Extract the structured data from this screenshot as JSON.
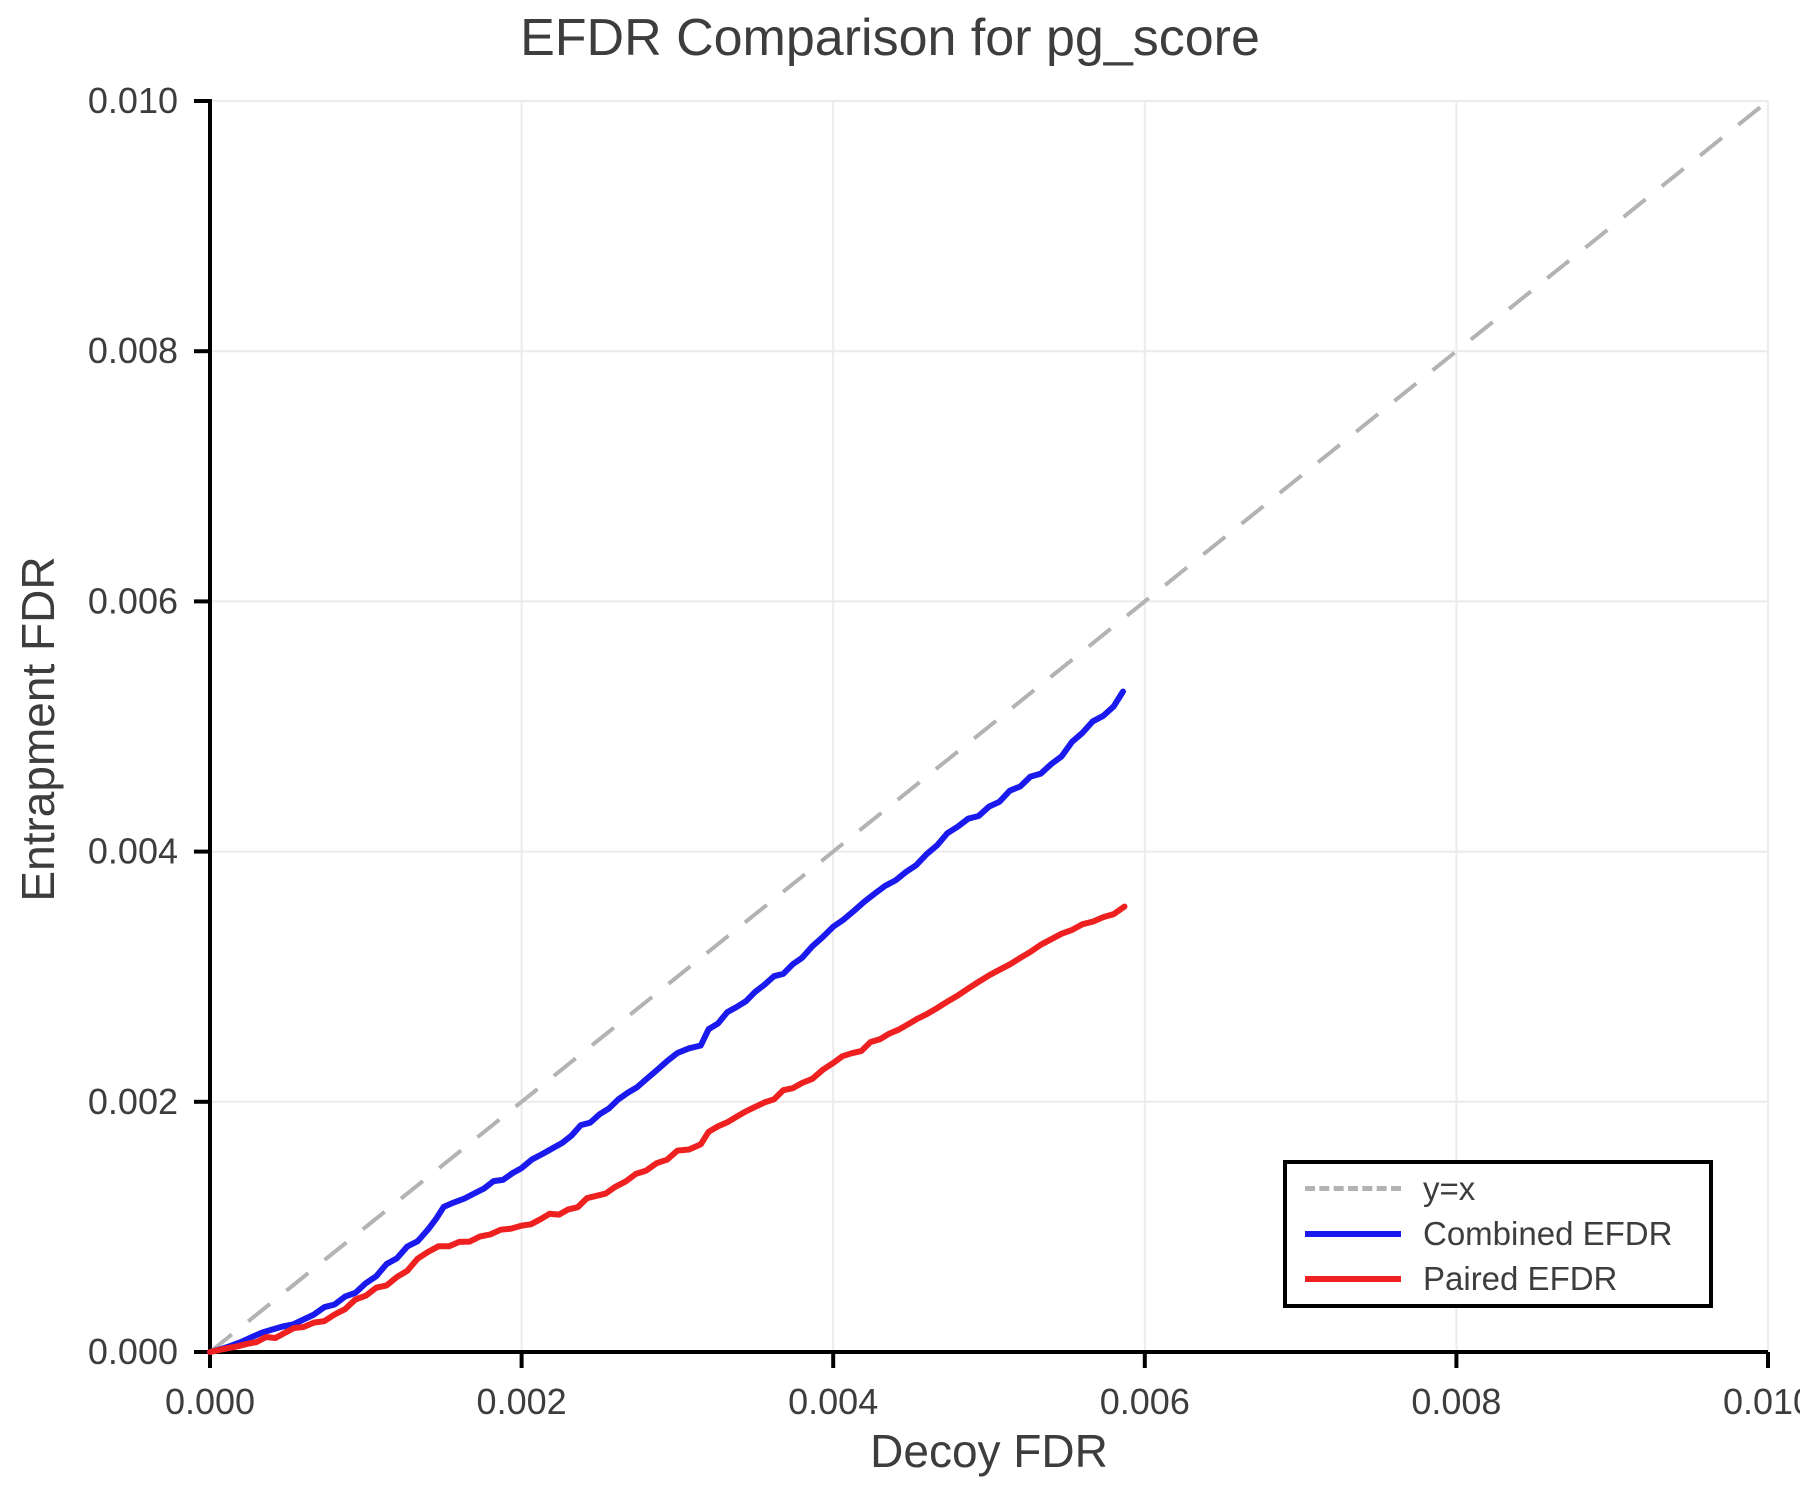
{
  "chart_data": {
    "type": "line",
    "title": "EFDR Comparison for pg_score",
    "xlabel": "Decoy FDR",
    "ylabel": "Entrapment FDR",
    "xlim": [
      0.0,
      0.01
    ],
    "ylim": [
      0.0,
      0.01
    ],
    "xticks": [
      0.0,
      0.002,
      0.004,
      0.006,
      0.008,
      0.01
    ],
    "yticks": [
      0.0,
      0.002,
      0.004,
      0.006,
      0.008,
      0.01
    ],
    "xtick_labels": [
      "0.000",
      "0.002",
      "0.004",
      "0.006",
      "0.008",
      "0.010"
    ],
    "ytick_labels": [
      "0.000",
      "0.002",
      "0.004",
      "0.006",
      "0.008",
      "0.010"
    ],
    "grid": true,
    "legend_position": "lower right",
    "colors": {
      "grid": "#ebebeb",
      "spine": "#000000",
      "text": "#3d3d3d",
      "reference": "#b3b3b3",
      "combined": "#1a1aee",
      "paired": "#ee2020"
    },
    "reference_line": {
      "name": "y=x",
      "style": "dashed",
      "points": [
        [
          0.0,
          0.0
        ],
        [
          0.01,
          0.01
        ]
      ]
    },
    "series": [
      {
        "name": "Combined EFDR",
        "color_key": "combined",
        "points": [
          [
            0.0,
            0.0
          ],
          [
            0.0002,
            8e-05
          ],
          [
            0.0004,
            0.00018
          ],
          [
            0.0006,
            0.00026
          ],
          [
            0.0008,
            0.00038
          ],
          [
            0.001,
            0.00055
          ],
          [
            0.0012,
            0.00075
          ],
          [
            0.0014,
            0.00098
          ],
          [
            0.0015,
            0.00116
          ],
          [
            0.0017,
            0.00127
          ],
          [
            0.002,
            0.00147
          ],
          [
            0.0022,
            0.00163
          ],
          [
            0.0025,
            0.0019
          ],
          [
            0.0028,
            0.00218
          ],
          [
            0.003,
            0.00239
          ],
          [
            0.00315,
            0.00245
          ],
          [
            0.0032,
            0.00258
          ],
          [
            0.0035,
            0.00288
          ],
          [
            0.0038,
            0.00315
          ],
          [
            0.004,
            0.0034
          ],
          [
            0.0042,
            0.0036
          ],
          [
            0.0044,
            0.00377
          ],
          [
            0.0046,
            0.00398
          ],
          [
            0.0048,
            0.0042
          ],
          [
            0.005,
            0.00436
          ],
          [
            0.0052,
            0.00452
          ],
          [
            0.0054,
            0.0047
          ],
          [
            0.0056,
            0.00495
          ],
          [
            0.0058,
            0.00516
          ],
          [
            0.00586,
            0.00528
          ]
        ]
      },
      {
        "name": "Paired EFDR",
        "color_key": "paired",
        "points": [
          [
            0.0,
            0.0
          ],
          [
            0.0003,
            8e-05
          ],
          [
            0.0006,
            0.0002
          ],
          [
            0.0008,
            0.0003
          ],
          [
            0.001,
            0.00045
          ],
          [
            0.0012,
            0.0006
          ],
          [
            0.0014,
            0.0008
          ],
          [
            0.0016,
            0.00088
          ],
          [
            0.0018,
            0.00094
          ],
          [
            0.002,
            0.00101
          ],
          [
            0.0023,
            0.00114
          ],
          [
            0.0026,
            0.00132
          ],
          [
            0.0028,
            0.00145
          ],
          [
            0.003,
            0.00161
          ],
          [
            0.00315,
            0.00166
          ],
          [
            0.0032,
            0.00176
          ],
          [
            0.0035,
            0.00196
          ],
          [
            0.0038,
            0.00215
          ],
          [
            0.004,
            0.00231
          ],
          [
            0.0043,
            0.0025
          ],
          [
            0.0046,
            0.0027
          ],
          [
            0.0048,
            0.00285
          ],
          [
            0.005,
            0.00301
          ],
          [
            0.0052,
            0.00315
          ],
          [
            0.0054,
            0.0033
          ],
          [
            0.0056,
            0.00342
          ],
          [
            0.0058,
            0.0035
          ],
          [
            0.00587,
            0.00356
          ]
        ]
      }
    ],
    "legend": [
      {
        "label": "y=x",
        "style": "dashed",
        "color_key": "reference"
      },
      {
        "label": "Combined EFDR",
        "style": "solid",
        "color_key": "combined"
      },
      {
        "label": "Paired EFDR",
        "style": "solid",
        "color_key": "paired"
      }
    ]
  }
}
